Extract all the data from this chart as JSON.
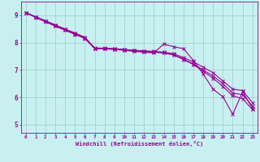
{
  "line_color": "#990099",
  "background_color": "#c8f0f0",
  "grid_color": "#99cccc",
  "xlabel": "Windchill (Refroidissement éolien,°C)",
  "xlabel_color": "#990099",
  "tick_color": "#990099",
  "xlim": [
    -0.5,
    23.5
  ],
  "ylim": [
    4.7,
    9.5
  ],
  "yticks": [
    5,
    6,
    7,
    8,
    9
  ],
  "xticks": [
    0,
    1,
    2,
    3,
    4,
    5,
    6,
    7,
    8,
    9,
    10,
    11,
    12,
    13,
    14,
    15,
    16,
    17,
    18,
    19,
    20,
    21,
    22,
    23
  ],
  "series": [
    [
      9.1,
      8.95,
      8.8,
      8.65,
      8.5,
      8.35,
      8.2,
      7.8,
      7.8,
      7.78,
      7.75,
      7.72,
      7.7,
      7.68,
      7.65,
      7.6,
      7.45,
      7.3,
      7.1,
      6.9,
      6.6,
      6.3,
      6.25,
      5.8
    ],
    [
      9.1,
      8.93,
      8.78,
      8.62,
      8.47,
      8.32,
      8.17,
      7.79,
      7.78,
      7.76,
      7.73,
      7.7,
      7.67,
      7.65,
      7.62,
      7.55,
      7.38,
      7.2,
      6.95,
      6.7,
      6.4,
      6.05,
      5.95,
      5.55
    ],
    [
      9.1,
      8.92,
      8.76,
      8.6,
      8.45,
      8.3,
      8.15,
      7.78,
      7.77,
      7.75,
      7.72,
      7.68,
      7.65,
      7.62,
      7.95,
      7.85,
      7.78,
      7.35,
      6.85,
      6.3,
      6.02,
      5.38,
      6.2,
      5.6
    ],
    [
      9.1,
      8.94,
      8.79,
      8.63,
      8.48,
      8.33,
      8.18,
      7.79,
      7.79,
      7.77,
      7.74,
      7.71,
      7.68,
      7.66,
      7.63,
      7.56,
      7.4,
      7.22,
      7.0,
      6.78,
      6.5,
      6.15,
      6.1,
      5.68
    ]
  ],
  "marker": "x",
  "markersize": 3,
  "linewidth": 0.8
}
